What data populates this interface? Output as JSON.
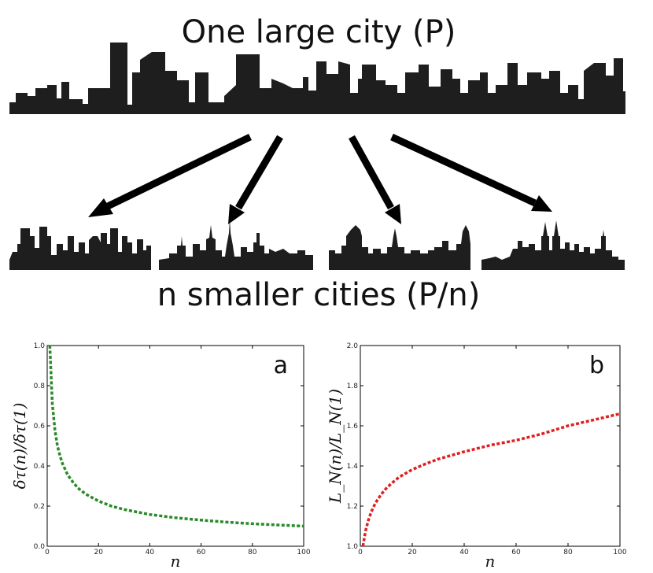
{
  "diagram": {
    "top_label": "One large city (P)",
    "bottom_label": "n smaller cities (P/n)"
  },
  "chart_data": [
    {
      "type": "line",
      "panel_label": "a",
      "title": "",
      "xlabel": "n",
      "ylabel": "δτ(n)/δτ(1)",
      "xlim": [
        0,
        100
      ],
      "ylim": [
        0.0,
        1.0
      ],
      "xticks": [
        0,
        20,
        40,
        60,
        80,
        100
      ],
      "yticks": [
        0.0,
        0.2,
        0.4,
        0.6,
        0.8,
        1.0
      ],
      "ytick_labels": [
        "0.0",
        "0.2",
        "0.4",
        "0.6",
        "0.8",
        "1.0"
      ],
      "series": [
        {
          "name": "δτ(n)/δτ(1)",
          "color": "#2a8a2a",
          "style": "dashed",
          "x": [
            1,
            2,
            3,
            4,
            5,
            6,
            8,
            10,
            12,
            15,
            20,
            25,
            30,
            40,
            50,
            60,
            70,
            80,
            90,
            100
          ],
          "y": [
            1.0,
            0.71,
            0.58,
            0.5,
            0.45,
            0.41,
            0.355,
            0.32,
            0.29,
            0.26,
            0.225,
            0.2,
            0.183,
            0.158,
            0.142,
            0.13,
            0.12,
            0.112,
            0.106,
            0.1
          ]
        }
      ]
    },
    {
      "type": "line",
      "panel_label": "b",
      "title": "",
      "xlabel": "n",
      "ylabel": "L_N(n)/L_N(1)",
      "xlim": [
        0,
        100
      ],
      "ylim": [
        1.0,
        2.0
      ],
      "xticks": [
        0,
        20,
        40,
        60,
        80,
        100
      ],
      "yticks": [
        1.0,
        1.2,
        1.4,
        1.6,
        1.8,
        2.0
      ],
      "ytick_labels": [
        "1.0",
        "1.2",
        "1.4",
        "1.6",
        "1.8",
        "2.0"
      ],
      "series": [
        {
          "name": "L_N(n)/L_N(1)",
          "color": "#e02020",
          "style": "dashed",
          "x": [
            1,
            2,
            3,
            4,
            5,
            6,
            8,
            10,
            12,
            15,
            20,
            25,
            30,
            40,
            50,
            60,
            70,
            80,
            90,
            100
          ],
          "y": [
            1.0,
            1.076,
            1.126,
            1.163,
            1.194,
            1.219,
            1.258,
            1.289,
            1.313,
            1.345,
            1.382,
            1.41,
            1.434,
            1.471,
            1.503,
            1.528,
            1.56,
            1.6,
            1.63,
            1.66
          ]
        }
      ]
    }
  ]
}
